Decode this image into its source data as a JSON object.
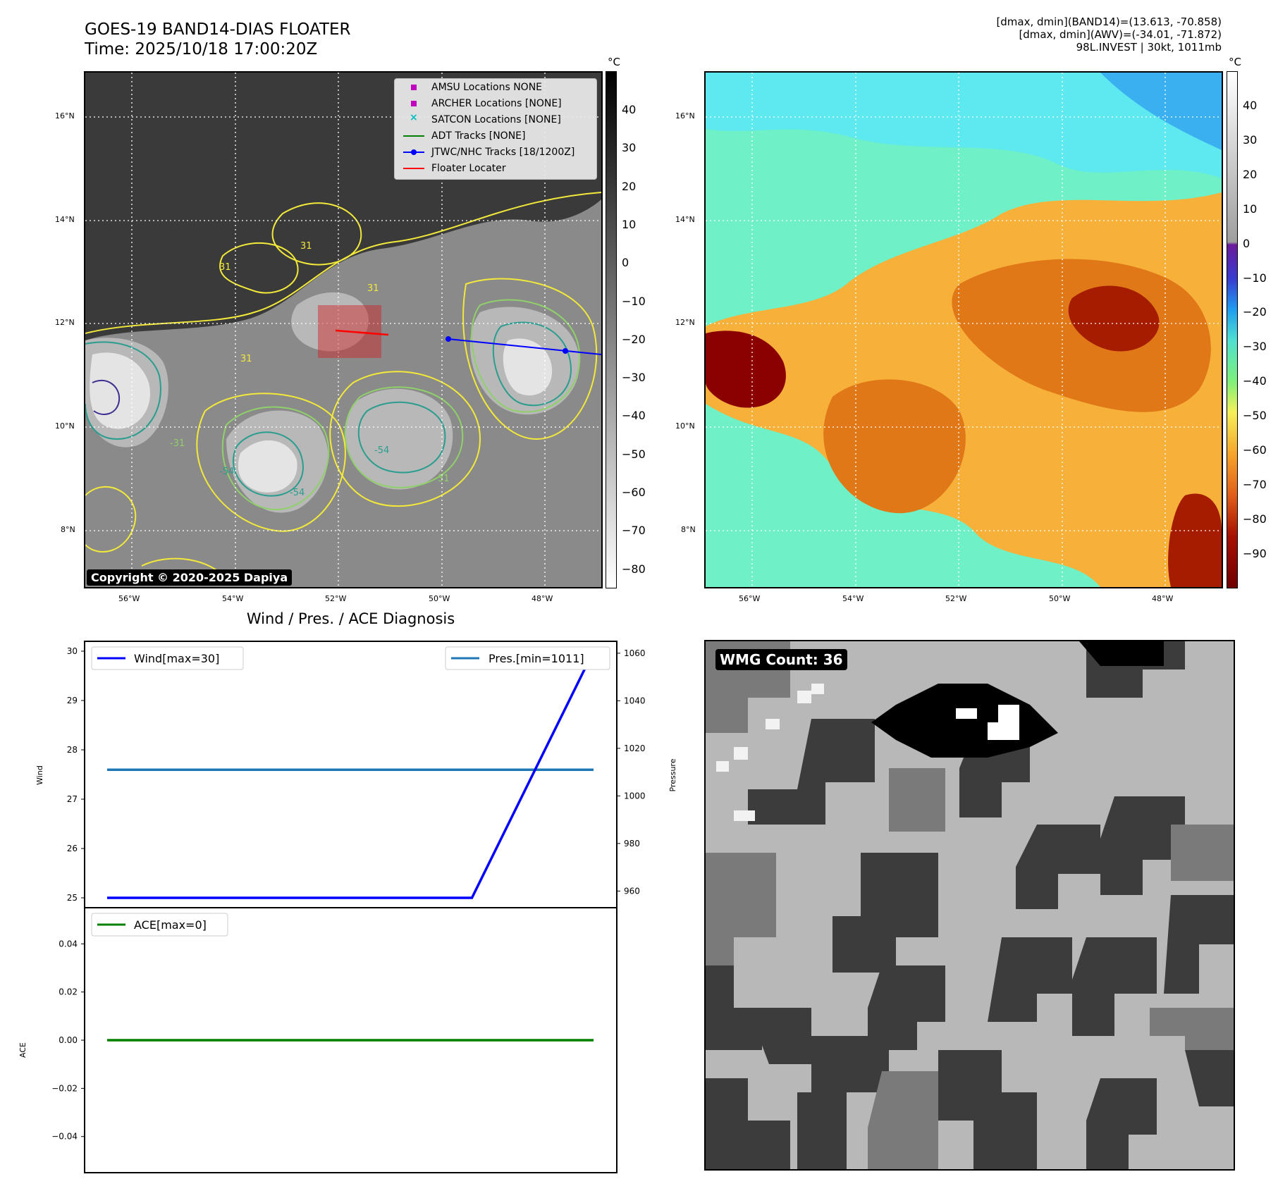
{
  "header": {
    "title_line1": "GOES-19 BAND14-DIAS FLOATER",
    "title_line2": "Time: 2025/10/18 17:00:20Z",
    "info_line1": "[dmax, dmin](BAND14)=(13.613, -70.858)",
    "info_line2": "[dmax, dmin](AWV)=(-34.01, -71.872)",
    "info_line3": "98L.INVEST | 30kt, 1011mb"
  },
  "map_axes": {
    "lat_ticks": [
      "16°N",
      "14°N",
      "12°N",
      "10°N",
      "8°N"
    ],
    "lon_ticks": [
      "56°W",
      "54°W",
      "52°W",
      "50°W",
      "48°W"
    ]
  },
  "ir_panel": {
    "copyright": "Copyright © 2020-2025 Dapiya",
    "contour_labels": [
      "31",
      "31",
      "31",
      "31",
      "-54",
      "-54",
      "-54",
      "-31",
      "31"
    ],
    "colorbar_unit": "°C",
    "colorbar_ticks": [
      "40",
      "30",
      "20",
      "10",
      "0",
      "−10",
      "−20",
      "−30",
      "−40",
      "−50",
      "−60",
      "−70",
      "−80"
    ],
    "legend": [
      {
        "label": "AMSU Locations NONE",
        "icon": "square-marker",
        "color": "#bf00bf"
      },
      {
        "label": "ARCHER Locations [NONE]",
        "icon": "square-marker",
        "color": "#bf00bf"
      },
      {
        "label": "SATCON Locations [NONE]",
        "icon": "x-marker",
        "color": "#00bfbf"
      },
      {
        "label": "ADT Tracks [NONE]",
        "icon": "line",
        "color": "#008000"
      },
      {
        "label": "JTWC/NHC Tracks [18/1200Z]",
        "icon": "line-dot",
        "color": "#0000ff"
      },
      {
        "label": "Floater Locater",
        "icon": "line",
        "color": "#ff0000"
      }
    ]
  },
  "wv_panel": {
    "colorbar_unit": "°C",
    "colorbar_ticks": [
      "40",
      "30",
      "20",
      "10",
      "0",
      "−10",
      "−20",
      "−30",
      "−40",
      "−50",
      "−60",
      "−70",
      "−80",
      "−90"
    ]
  },
  "diagnosis": {
    "title": "Wind / Pres. / ACE Diagnosis",
    "wind_ylabel": "Wind",
    "pressure_ylabel": "Pressure",
    "ace_ylabel": "ACE",
    "wind_ticks": [
      "30",
      "29",
      "28",
      "27",
      "26",
      "25"
    ],
    "pressure_ticks": [
      "1060",
      "1040",
      "1020",
      "1000",
      "980",
      "960"
    ],
    "ace_ticks": [
      "0.04",
      "0.02",
      "0.00",
      "−0.02",
      "−0.04"
    ],
    "legend_wind": "Wind[max=30]",
    "legend_pres": "Pres.[min=1011]",
    "legend_ace": "ACE[max=0]"
  },
  "wmg_panel": {
    "badge": "WMG Count: 36"
  },
  "colors": {
    "wind": "#0000ff",
    "pressure": "#1f77b4",
    "ace": "#008000",
    "jtwc_track": "#0000ff",
    "floater": "#ff0000"
  },
  "chart_data": [
    {
      "type": "line",
      "title": "Wind / Pres. / ACE Diagnosis",
      "ylabel": "Wind",
      "ylim": [
        24.8,
        30.2
      ],
      "series": [
        {
          "name": "Wind[max=30]",
          "x": [
            0,
            1,
            2,
            3,
            4
          ],
          "values": [
            25,
            25,
            25,
            25,
            30
          ]
        }
      ]
    },
    {
      "type": "line",
      "ylabel": "Pressure",
      "ylim": [
        953,
        1065
      ],
      "series": [
        {
          "name": "Pres.[min=1011]",
          "x": [
            0,
            1,
            2,
            3,
            4
          ],
          "values": [
            1011,
            1011,
            1011,
            1011,
            1011
          ]
        }
      ]
    },
    {
      "type": "line",
      "ylabel": "ACE",
      "ylim": [
        -0.055,
        0.055
      ],
      "series": [
        {
          "name": "ACE[max=0]",
          "x": [
            0,
            1,
            2,
            3,
            4
          ],
          "values": [
            0,
            0,
            0,
            0,
            0
          ]
        }
      ]
    }
  ]
}
